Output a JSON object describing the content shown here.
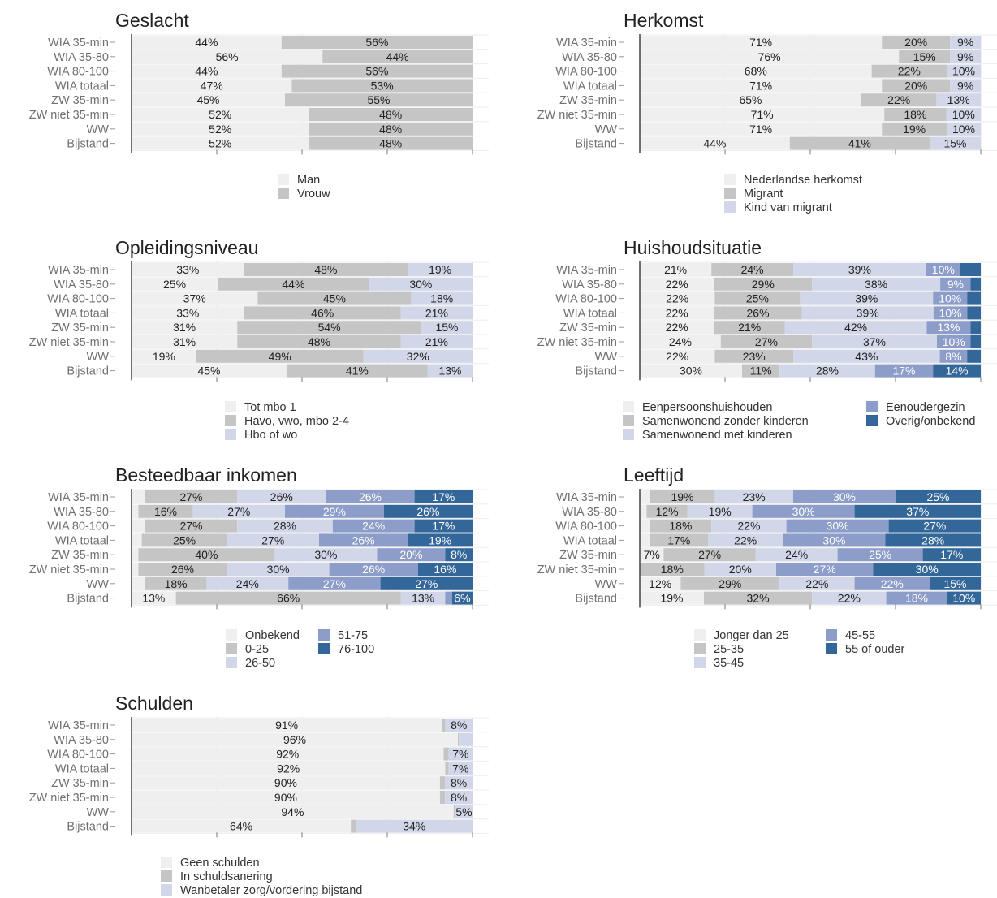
{
  "categories": [
    "WIA 35-min",
    "WIA 35-80",
    "WIA 80-100",
    "WIA totaal",
    "ZW 35-min",
    "ZW niet 35-min",
    "WW",
    "Bijstand"
  ],
  "palette": [
    "#efefef",
    "#c5c5c5",
    "#d1d7e8",
    "#8d9dc9",
    "#336699"
  ],
  "chart_data": [
    {
      "type": "bar",
      "orientation": "horizontal",
      "stacked": true,
      "normalized": true,
      "title": "Geslacht",
      "categories": [
        "WIA 35-min",
        "WIA 35-80",
        "WIA 80-100",
        "WIA totaal",
        "ZW 35-min",
        "ZW niet 35-min",
        "WW",
        "Bijstand"
      ],
      "series": [
        {
          "name": "Man",
          "color": "#efefef",
          "values": [
            44,
            56,
            44,
            47,
            45,
            52,
            52,
            52
          ]
        },
        {
          "name": "Vrouw",
          "color": "#c5c5c5",
          "values": [
            56,
            44,
            56,
            53,
            55,
            48,
            48,
            48
          ]
        }
      ],
      "labels": [
        [
          "44%",
          "56%"
        ],
        [
          "56%",
          "44%"
        ],
        [
          "44%",
          "56%"
        ],
        [
          "47%",
          "53%"
        ],
        [
          "45%",
          "55%"
        ],
        [
          "52%",
          "48%"
        ],
        [
          "52%",
          "48%"
        ],
        [
          "52%",
          "48%"
        ]
      ],
      "legend_columns": [
        [
          "Man",
          "Vrouw"
        ]
      ]
    },
    {
      "type": "bar",
      "orientation": "horizontal",
      "stacked": true,
      "normalized": true,
      "title": "Herkomst",
      "categories": [
        "WIA 35-min",
        "WIA 35-80",
        "WIA 80-100",
        "WIA totaal",
        "ZW 35-min",
        "ZW niet 35-min",
        "WW",
        "Bijstand"
      ],
      "series": [
        {
          "name": "Nederlandse herkomst",
          "color": "#efefef",
          "values": [
            71,
            76,
            68,
            71,
            65,
            71,
            71,
            44
          ]
        },
        {
          "name": "Migrant",
          "color": "#c5c5c5",
          "values": [
            20,
            15,
            22,
            20,
            22,
            18,
            19,
            41
          ]
        },
        {
          "name": "Kind van migrant",
          "color": "#d1d7e8",
          "values": [
            9,
            9,
            10,
            9,
            13,
            10,
            10,
            15
          ]
        }
      ],
      "labels": [
        [
          "71%",
          "20%",
          "9%"
        ],
        [
          "76%",
          "15%",
          "9%"
        ],
        [
          "68%",
          "22%",
          "10%"
        ],
        [
          "71%",
          "20%",
          "9%"
        ],
        [
          "65%",
          "22%",
          "13%"
        ],
        [
          "71%",
          "18%",
          "10%"
        ],
        [
          "71%",
          "19%",
          "10%"
        ],
        [
          "44%",
          "41%",
          "15%"
        ]
      ],
      "legend_columns": [
        [
          "Nederlandse herkomst",
          "Migrant",
          "Kind van migrant"
        ]
      ]
    },
    {
      "type": "bar",
      "orientation": "horizontal",
      "stacked": true,
      "normalized": true,
      "title": "Opleidingsniveau",
      "categories": [
        "WIA 35-min",
        "WIA 35-80",
        "WIA 80-100",
        "WIA totaal",
        "ZW 35-min",
        "ZW niet 35-min",
        "WW",
        "Bijstand"
      ],
      "series": [
        {
          "name": "Tot mbo 1",
          "color": "#efefef",
          "values": [
            33,
            25,
            37,
            33,
            31,
            31,
            19,
            45
          ]
        },
        {
          "name": "Havo, vwo, mbo 2-4",
          "color": "#c5c5c5",
          "values": [
            48,
            44,
            45,
            46,
            54,
            48,
            49,
            41
          ]
        },
        {
          "name": "Hbo of wo",
          "color": "#d1d7e8",
          "values": [
            19,
            30,
            18,
            21,
            15,
            21,
            32,
            13
          ]
        }
      ],
      "labels": [
        [
          "33%",
          "48%",
          "19%"
        ],
        [
          "25%",
          "44%",
          "30%"
        ],
        [
          "37%",
          "45%",
          "18%"
        ],
        [
          "33%",
          "46%",
          "21%"
        ],
        [
          "31%",
          "54%",
          "15%"
        ],
        [
          "31%",
          "48%",
          "21%"
        ],
        [
          "19%",
          "49%",
          "32%"
        ],
        [
          "45%",
          "41%",
          "13%"
        ]
      ],
      "legend_columns": [
        [
          "Tot mbo 1",
          "Havo, vwo, mbo 2-4",
          "Hbo of wo"
        ]
      ]
    },
    {
      "type": "bar",
      "orientation": "horizontal",
      "stacked": true,
      "normalized": true,
      "title": "Huishoudsituatie",
      "categories": [
        "WIA 35-min",
        "WIA 35-80",
        "WIA 80-100",
        "WIA totaal",
        "ZW 35-min",
        "ZW niet 35-min",
        "WW",
        "Bijstand"
      ],
      "series": [
        {
          "name": "Eenpersoonshuishouden",
          "color": "#efefef",
          "values": [
            21,
            22,
            22,
            22,
            22,
            24,
            22,
            30
          ]
        },
        {
          "name": "Samenwonend zonder kinderen",
          "color": "#c5c5c5",
          "values": [
            24,
            29,
            25,
            26,
            21,
            27,
            23,
            11
          ]
        },
        {
          "name": "Samenwonend met kinderen",
          "color": "#d1d7e8",
          "values": [
            39,
            38,
            39,
            39,
            42,
            37,
            43,
            28
          ]
        },
        {
          "name": "Eenoudergezin",
          "color": "#8d9dc9",
          "values": [
            10,
            9,
            10,
            10,
            13,
            10,
            8,
            17
          ]
        },
        {
          "name": "Overig/onbekend",
          "color": "#336699",
          "values": [
            6,
            3,
            4,
            4,
            3,
            3,
            4,
            14
          ]
        }
      ],
      "labels": [
        [
          "21%",
          "24%",
          "39%",
          "10%",
          ""
        ],
        [
          "22%",
          "29%",
          "38%",
          "9%",
          ""
        ],
        [
          "22%",
          "25%",
          "39%",
          "10%",
          ""
        ],
        [
          "22%",
          "26%",
          "39%",
          "10%",
          ""
        ],
        [
          "22%",
          "21%",
          "42%",
          "13%",
          ""
        ],
        [
          "24%",
          "27%",
          "37%",
          "10%",
          ""
        ],
        [
          "22%",
          "23%",
          "43%",
          "8%",
          ""
        ],
        [
          "30%",
          "11%",
          "28%",
          "17%",
          "14%"
        ]
      ],
      "legend_columns": [
        [
          "Eenpersoonshuishouden",
          "Samenwonend zonder kinderen",
          "Samenwonend met kinderen"
        ],
        [
          "Eenoudergezin",
          "Overig/onbekend"
        ]
      ]
    },
    {
      "type": "bar",
      "orientation": "horizontal",
      "stacked": true,
      "normalized": true,
      "title": "Besteedbaar inkomen",
      "categories": [
        "WIA 35-min",
        "WIA 35-80",
        "WIA 80-100",
        "WIA totaal",
        "ZW 35-min",
        "ZW niet 35-min",
        "WW",
        "Bijstand"
      ],
      "series": [
        {
          "name": "Onbekend",
          "color": "#efefef",
          "values": [
            4,
            2,
            4,
            3,
            2,
            2,
            4,
            13
          ]
        },
        {
          "name": "0-25",
          "color": "#c5c5c5",
          "values": [
            27,
            16,
            27,
            25,
            40,
            26,
            18,
            66
          ]
        },
        {
          "name": "26-50",
          "color": "#d1d7e8",
          "values": [
            26,
            27,
            28,
            27,
            30,
            30,
            24,
            13
          ]
        },
        {
          "name": "51-75",
          "color": "#8d9dc9",
          "values": [
            26,
            29,
            24,
            26,
            20,
            26,
            27,
            2
          ]
        },
        {
          "name": "76-100",
          "color": "#336699",
          "values": [
            17,
            26,
            17,
            19,
            8,
            16,
            27,
            6
          ]
        }
      ],
      "labels": [
        [
          "",
          "27%",
          "26%",
          "26%",
          "17%"
        ],
        [
          "",
          "16%",
          "27%",
          "29%",
          "26%"
        ],
        [
          "",
          "27%",
          "28%",
          "24%",
          "17%"
        ],
        [
          "",
          "25%",
          "27%",
          "26%",
          "19%"
        ],
        [
          "",
          "40%",
          "30%",
          "20%",
          "8%"
        ],
        [
          "",
          "26%",
          "30%",
          "26%",
          "16%"
        ],
        [
          "",
          "18%",
          "24%",
          "27%",
          "27%"
        ],
        [
          "13%",
          "66%",
          "13%",
          "",
          "6%"
        ]
      ],
      "legend_columns": [
        [
          "Onbekend",
          "0-25",
          "26-50"
        ],
        [
          "51-75",
          "76-100"
        ]
      ]
    },
    {
      "type": "bar",
      "orientation": "horizontal",
      "stacked": true,
      "normalized": true,
      "title": "Leeftijd",
      "categories": [
        "WIA 35-min",
        "WIA 35-80",
        "WIA 80-100",
        "WIA totaal",
        "ZW 35-min",
        "ZW niet 35-min",
        "WW",
        "Bijstand"
      ],
      "series": [
        {
          "name": "Jonger dan 25",
          "color": "#efefef",
          "values": [
            3,
            2,
            3,
            3,
            7,
            0,
            12,
            19
          ]
        },
        {
          "name": "25-35",
          "color": "#c5c5c5",
          "values": [
            19,
            12,
            18,
            17,
            27,
            18,
            29,
            32
          ]
        },
        {
          "name": "35-45",
          "color": "#d1d7e8",
          "values": [
            23,
            19,
            22,
            22,
            24,
            20,
            22,
            22
          ]
        },
        {
          "name": "45-55",
          "color": "#8d9dc9",
          "values": [
            30,
            30,
            30,
            30,
            25,
            27,
            22,
            18
          ]
        },
        {
          "name": "55 of ouder",
          "color": "#336699",
          "values": [
            25,
            37,
            27,
            28,
            17,
            30,
            15,
            10
          ]
        }
      ],
      "labels": [
        [
          "",
          "19%",
          "23%",
          "30%",
          "25%"
        ],
        [
          "",
          "12%",
          "19%",
          "30%",
          "37%"
        ],
        [
          "",
          "18%",
          "22%",
          "30%",
          "27%"
        ],
        [
          "",
          "17%",
          "22%",
          "30%",
          "28%"
        ],
        [
          "7%",
          "27%",
          "24%",
          "25%",
          "17%"
        ],
        [
          "",
          "18%",
          "20%",
          "27%",
          "30%"
        ],
        [
          "12%",
          "29%",
          "22%",
          "22%",
          "15%"
        ],
        [
          "19%",
          "32%",
          "22%",
          "18%",
          "10%"
        ]
      ],
      "legend_columns": [
        [
          "Jonger dan 25",
          "25-35",
          "35-45"
        ],
        [
          "45-55",
          "55 of ouder"
        ]
      ]
    },
    {
      "type": "bar",
      "orientation": "horizontal",
      "stacked": true,
      "normalized": true,
      "title": "Schulden",
      "categories": [
        "WIA 35-min",
        "WIA 35-80",
        "WIA 80-100",
        "WIA totaal",
        "ZW 35-min",
        "ZW niet 35-min",
        "WW",
        "Bijstand"
      ],
      "series": [
        {
          "name": "Geen schulden",
          "color": "#efefef",
          "values": [
            91,
            96,
            92,
            92,
            90,
            90,
            94,
            64
          ]
        },
        {
          "name": "In schuldsanering",
          "color": "#c5c5c5",
          "values": [
            1,
            0.3,
            1.5,
            1,
            1.5,
            1.5,
            0.5,
            1.5
          ]
        },
        {
          "name": "Wanbetaler zorg/vordering bijstand",
          "color": "#d1d7e8",
          "values": [
            8,
            4,
            7,
            7,
            8,
            8,
            5,
            34
          ]
        }
      ],
      "labels": [
        [
          "91%",
          "",
          "8%"
        ],
        [
          "96%",
          "",
          ""
        ],
        [
          "92%",
          "",
          "7%"
        ],
        [
          "92%",
          "",
          "7%"
        ],
        [
          "90%",
          "",
          "8%"
        ],
        [
          "90%",
          "",
          "8%"
        ],
        [
          "94%",
          "",
          "5%"
        ],
        [
          "64%",
          "",
          "34%"
        ]
      ],
      "legend_columns": [
        [
          "Geen schulden",
          "In schuldsanering",
          "Wanbetaler zorg/vordering bijstand"
        ]
      ]
    }
  ]
}
